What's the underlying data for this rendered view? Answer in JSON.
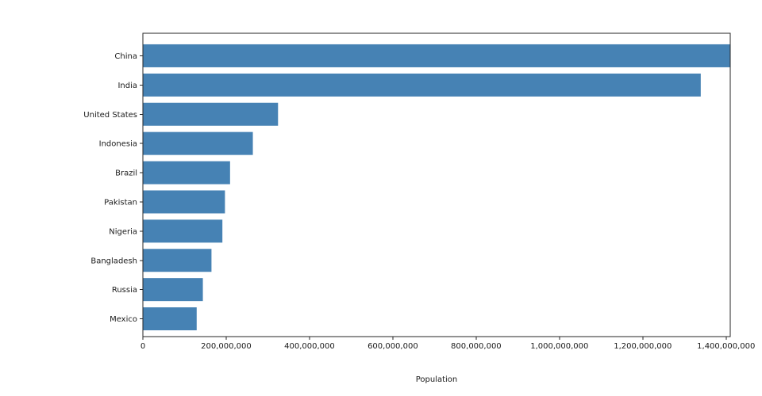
{
  "chart_data": {
    "type": "bar",
    "orientation": "horizontal",
    "title": "",
    "xlabel": "Population",
    "ylabel": "",
    "categories": [
      "China",
      "India",
      "United States",
      "Indonesia",
      "Brazil",
      "Pakistan",
      "Nigeria",
      "Bangladesh",
      "Russia",
      "Mexico"
    ],
    "values": [
      1409517397,
      1339180127,
      324459463,
      263991379,
      209288278,
      197015955,
      190886311,
      164669751,
      143989754,
      129163276
    ],
    "xlim": [
      0,
      1410000000
    ],
    "xticks": [
      {
        "value": 0,
        "label": "0"
      },
      {
        "value": 200000000,
        "label": "200,000,000"
      },
      {
        "value": 400000000,
        "label": "400,000,000"
      },
      {
        "value": 600000000,
        "label": "600,000,000"
      },
      {
        "value": 800000000,
        "label": "800,000,000"
      },
      {
        "value": 1000000000,
        "label": "1,000,000,000"
      },
      {
        "value": 1200000000,
        "label": "1,200,000,000"
      },
      {
        "value": 1400000000,
        "label": "1,400,000,000"
      }
    ],
    "grid": false,
    "legend": null,
    "colors": {
      "bar": "#4682B4",
      "axis": "#262626",
      "text": "#1a1a1a",
      "background": "#ffffff"
    }
  }
}
